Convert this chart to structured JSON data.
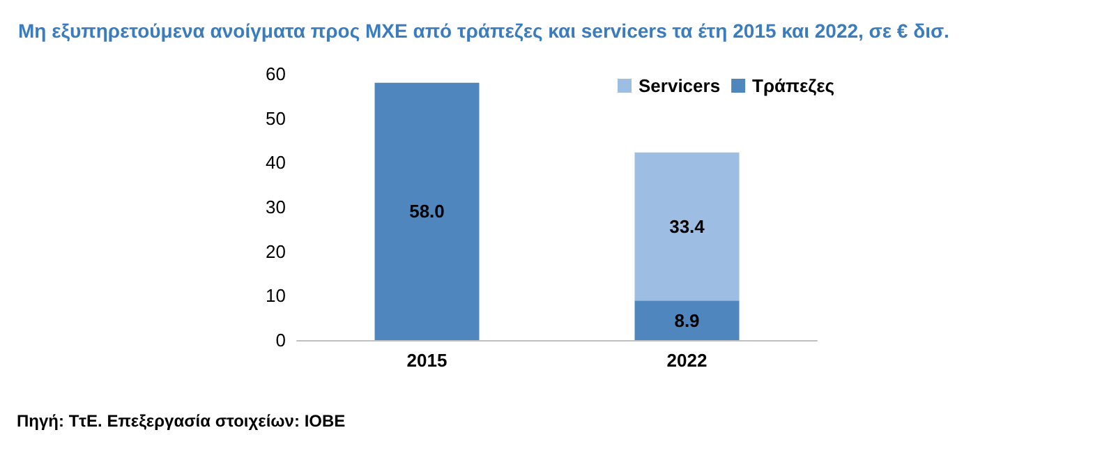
{
  "chart_data": {
    "type": "bar",
    "title": "Μη εξυπηρετούμενα ανοίγματα προς ΜΧΕ από τράπεζες και servicers τα έτη 2015 και 2022, σε € δισ.",
    "categories": [
      "2015",
      "2022"
    ],
    "stacked": true,
    "series": [
      {
        "name": "Τράπεζες",
        "color": "#4f86be",
        "values": [
          58.0,
          8.9
        ],
        "value_labels": [
          "58.0",
          "8.9"
        ]
      },
      {
        "name": "Servicers",
        "color": "#9dbde2",
        "values": [
          null,
          33.4
        ],
        "value_labels": [
          null,
          "33.4"
        ]
      }
    ],
    "ylim": [
      0,
      60
    ],
    "yticks": [
      0,
      10,
      20,
      30,
      40,
      50,
      60
    ],
    "grid": false,
    "legend": "top right",
    "annotations": [
      "Πηγή: ΤτΕ. Επεξεργασία στοιχείων: ΙΟΒΕ"
    ]
  }
}
